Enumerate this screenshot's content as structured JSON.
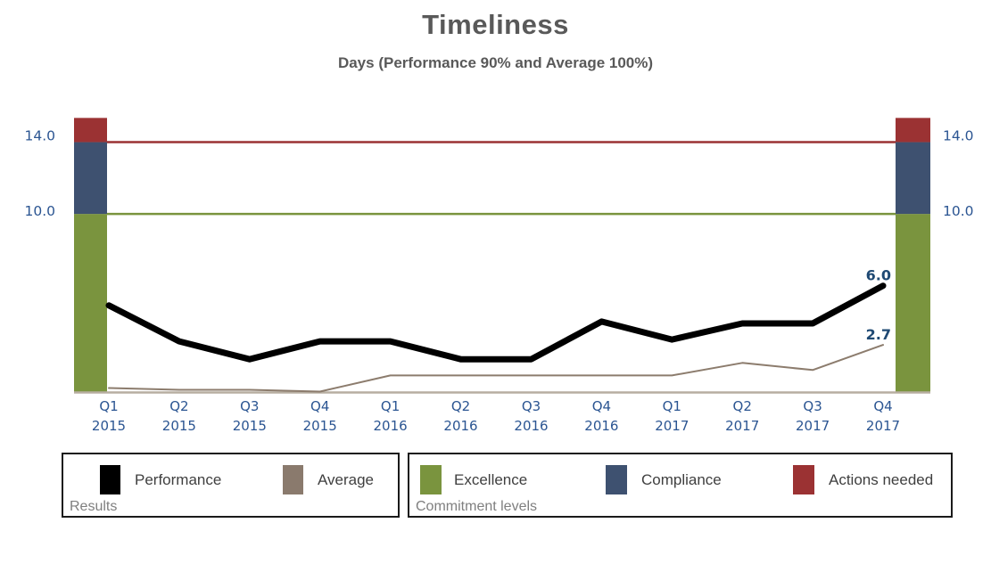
{
  "header": {
    "title": "Timeliness",
    "subtitle": "Days (Performance 90% and Average 100%)"
  },
  "colors": {
    "title_text": "#595959",
    "axis_label": "#2B5592",
    "endpoint_label": "#1F4973",
    "performance": "#000000",
    "average": "#8C7C6D",
    "excellence": "#7A943E",
    "compliance": "#3E5170",
    "actions_needed": "#9B3233",
    "baseline": "#B7AEA1",
    "legend_caption": "#7F7F7F",
    "legend_text": "#3F3F3F"
  },
  "chart_data": {
    "type": "line",
    "title": "Timeliness",
    "subtitle": "Days (Performance 90% and Average 100%)",
    "categories": [
      "Q1 2015",
      "Q2 2015",
      "Q3 2015",
      "Q4 2015",
      "Q1 2016",
      "Q2 2016",
      "Q3 2016",
      "Q4 2016",
      "Q1 2017",
      "Q2 2017",
      "Q3 2017",
      "Q4 2017"
    ],
    "series": [
      {
        "name": "Performance",
        "color": "#000000",
        "width": 7,
        "values": [
          4.9,
          2.9,
          1.9,
          2.9,
          2.9,
          1.9,
          1.9,
          4.0,
          3.0,
          3.9,
          3.9,
          6.0
        ],
        "end_label": "6.0"
      },
      {
        "name": "Average",
        "color": "#8C7C6D",
        "width": 2,
        "values": [
          0.3,
          0.2,
          0.2,
          0.1,
          1.0,
          1.0,
          1.0,
          1.0,
          1.0,
          1.7,
          1.3,
          2.7
        ],
        "end_label": "2.7"
      }
    ],
    "reference_lines": [
      {
        "value": 14.0,
        "label": "14.0",
        "color": "#9B3233",
        "label_dy": -2
      },
      {
        "value": 10.0,
        "label": "10.0",
        "color": "#7A943E",
        "label_dy": 2
      }
    ],
    "bands": [
      {
        "name": "Excellence",
        "from": 0,
        "to": 10,
        "color": "#7A943E"
      },
      {
        "name": "Compliance",
        "from": 10,
        "to": 14,
        "color": "#3E5170"
      },
      {
        "name": "Actions needed",
        "from": 14,
        "to": 15.35,
        "color": "#9B3233"
      }
    ],
    "ylim": [
      0,
      15.35
    ],
    "xlabel": "",
    "ylabel": "",
    "grid": false,
    "legend_position": "bottom"
  },
  "legend": {
    "results": {
      "caption": "Results",
      "items": [
        {
          "label": "Performance",
          "color": "#000000"
        },
        {
          "label": "Average",
          "color": "#8A7A6D"
        }
      ]
    },
    "commitment": {
      "caption": "Commitment levels",
      "items": [
        {
          "label": "Excellence",
          "color": "#7A943E"
        },
        {
          "label": "Compliance",
          "color": "#3E5170"
        },
        {
          "label": "Actions needed",
          "color": "#9B3233"
        }
      ]
    }
  }
}
